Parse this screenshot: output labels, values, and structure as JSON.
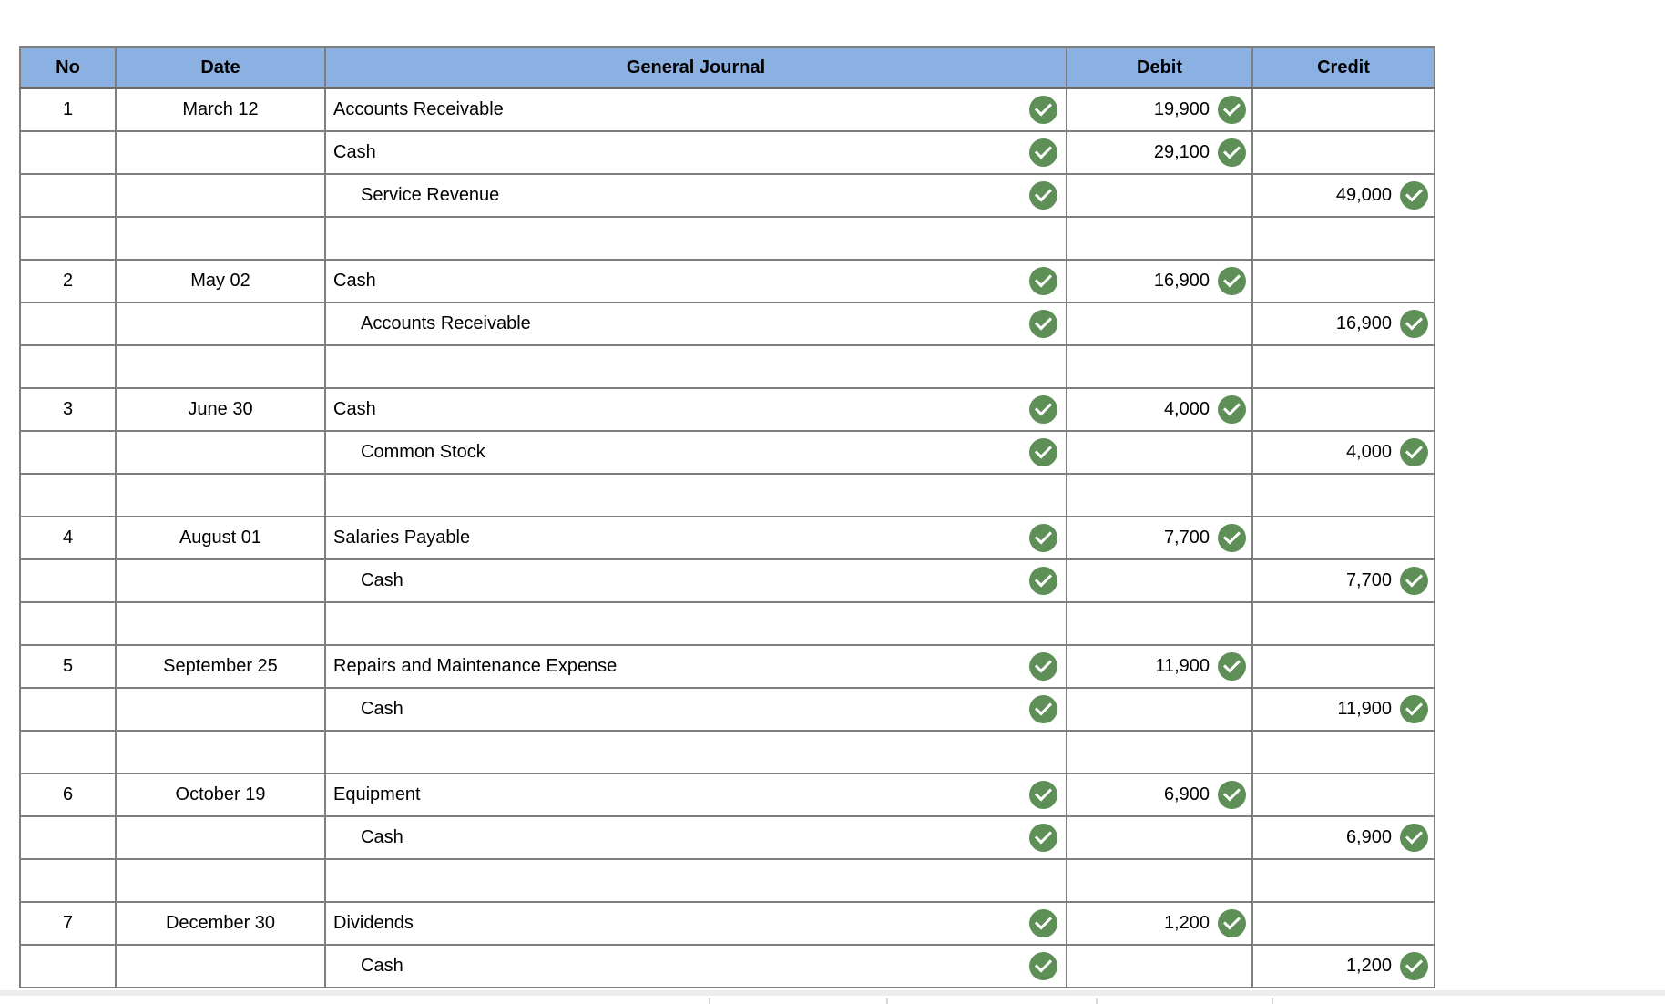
{
  "colors": {
    "header_bg": "#8bb0e2",
    "header_border": "#6a6a6a",
    "grid_border": "#7f7f7f",
    "cell_shaded": "#f3f6ec",
    "check_green": "#5e8f57",
    "divider_gray": "#ededed",
    "faint_line": "#d8d8d8"
  },
  "table": {
    "headers": {
      "no": "No",
      "date": "Date",
      "journal": "General Journal",
      "debit": "Debit",
      "credit": "Credit"
    },
    "rows": [
      {
        "no": "1",
        "date": "March 12",
        "account": "Accounts Receivable",
        "indent": false,
        "debit": "19,900",
        "credit": "",
        "spacer": false
      },
      {
        "no": "",
        "date": "",
        "account": "Cash",
        "indent": false,
        "debit": "29,100",
        "credit": "",
        "spacer": false
      },
      {
        "no": "",
        "date": "",
        "account": "Service Revenue",
        "indent": true,
        "debit": "",
        "credit": "49,000",
        "spacer": false
      },
      {
        "spacer": true
      },
      {
        "no": "2",
        "date": "May 02",
        "account": "Cash",
        "indent": false,
        "debit": "16,900",
        "credit": "",
        "spacer": false
      },
      {
        "no": "",
        "date": "",
        "account": "Accounts Receivable",
        "indent": true,
        "debit": "",
        "credit": "16,900",
        "spacer": false
      },
      {
        "spacer": true
      },
      {
        "no": "3",
        "date": "June 30",
        "account": "Cash",
        "indent": false,
        "debit": "4,000",
        "credit": "",
        "spacer": false
      },
      {
        "no": "",
        "date": "",
        "account": "Common Stock",
        "indent": true,
        "debit": "",
        "credit": "4,000",
        "spacer": false
      },
      {
        "spacer": true
      },
      {
        "no": "4",
        "date": "August 01",
        "account": "Salaries Payable",
        "indent": false,
        "debit": "7,700",
        "credit": "",
        "spacer": false
      },
      {
        "no": "",
        "date": "",
        "account": "Cash",
        "indent": true,
        "debit": "",
        "credit": "7,700",
        "spacer": false
      },
      {
        "spacer": true
      },
      {
        "no": "5",
        "date": "September 25",
        "account": "Repairs and Maintenance Expense",
        "indent": false,
        "debit": "11,900",
        "credit": "",
        "spacer": false
      },
      {
        "no": "",
        "date": "",
        "account": "Cash",
        "indent": true,
        "debit": "",
        "credit": "11,900",
        "spacer": false
      },
      {
        "spacer": true
      },
      {
        "no": "6",
        "date": "October 19",
        "account": "Equipment",
        "indent": false,
        "debit": "6,900",
        "credit": "",
        "spacer": false
      },
      {
        "no": "",
        "date": "",
        "account": "Cash",
        "indent": true,
        "debit": "",
        "credit": "6,900",
        "spacer": false
      },
      {
        "spacer": true
      },
      {
        "no": "7",
        "date": "December 30",
        "account": "Dividends",
        "indent": false,
        "debit": "1,200",
        "credit": "",
        "spacer": false
      },
      {
        "no": "",
        "date": "",
        "account": "Cash",
        "indent": true,
        "debit": "",
        "credit": "1,200",
        "spacer": false
      }
    ]
  }
}
